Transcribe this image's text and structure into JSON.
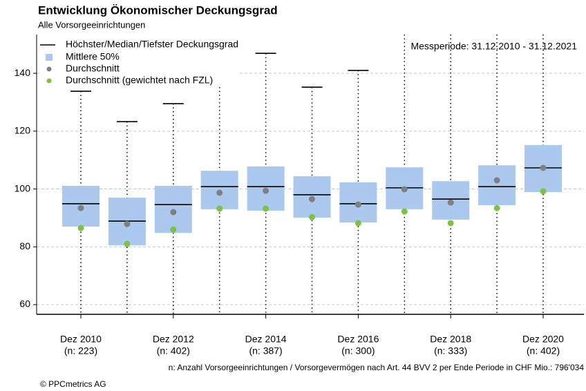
{
  "chart_data": {
    "type": "box",
    "title": "Entwicklung Ökonomischer Deckungsgrad",
    "subtitle": "Alle Vorsorgeeinrichtungen",
    "annotation": "Messperiode: 31.12.2010 - 31.12.2021",
    "footnote": "n: Anzahl Vorsorgeeinrichtungen / Vorsorgevermögen nach Art. 44 BVV 2 per Ende Periode in CHF Mio.: 796'034",
    "source": "© PPCmetrics AG",
    "legend": [
      "Höchster/Median/Tiefster Deckungsgrad",
      "Mittlere 50%",
      "Durchschnitt",
      "Durchschnitt (gewichtet nach FZL)"
    ],
    "categories": [
      "Dez 2010",
      null,
      "Dez 2012",
      null,
      "Dez 2014",
      null,
      "Dez 2016",
      null,
      "Dez 2018",
      null,
      "Dez 2020"
    ],
    "category_notes": [
      "(n: 223)",
      null,
      "(n: 402)",
      null,
      "(n: 387)",
      null,
      "(n: 300)",
      null,
      "(n: 333)",
      null,
      "(n: 402)"
    ],
    "max": [
      133.8,
      123.3,
      129.5,
      143.1,
      146.9,
      135.2,
      141.0,
      null,
      null,
      null,
      null
    ],
    "q3": [
      101.1,
      97.0,
      101.1,
      106.3,
      107.8,
      104.4,
      102.3,
      107.5,
      102.7,
      108.2,
      115.2
    ],
    "median": [
      94.9,
      88.9,
      94.6,
      100.8,
      100.8,
      98.0,
      94.9,
      100.4,
      96.5,
      100.8,
      107.3
    ],
    "q1": [
      87.0,
      80.5,
      84.8,
      93.0,
      92.5,
      90.1,
      88.4,
      93.0,
      89.4,
      94.4,
      98.9
    ],
    "mean": [
      93.4,
      87.9,
      92.0,
      98.7,
      99.4,
      96.5,
      94.6,
      99.9,
      95.3,
      103.0,
      107.3
    ],
    "weighted_mean": [
      86.5,
      81.0,
      86.0,
      93.2,
      93.2,
      90.3,
      88.2,
      92.2,
      88.2,
      93.4,
      99.2
    ],
    "box_color": "#abc8ef",
    "mean_color": "#808080",
    "weighted_color": "#7dc242",
    "ylim": [
      56.66,
      153.4
    ],
    "yticks": [
      60,
      80,
      100,
      120,
      140
    ],
    "grid": true
  }
}
